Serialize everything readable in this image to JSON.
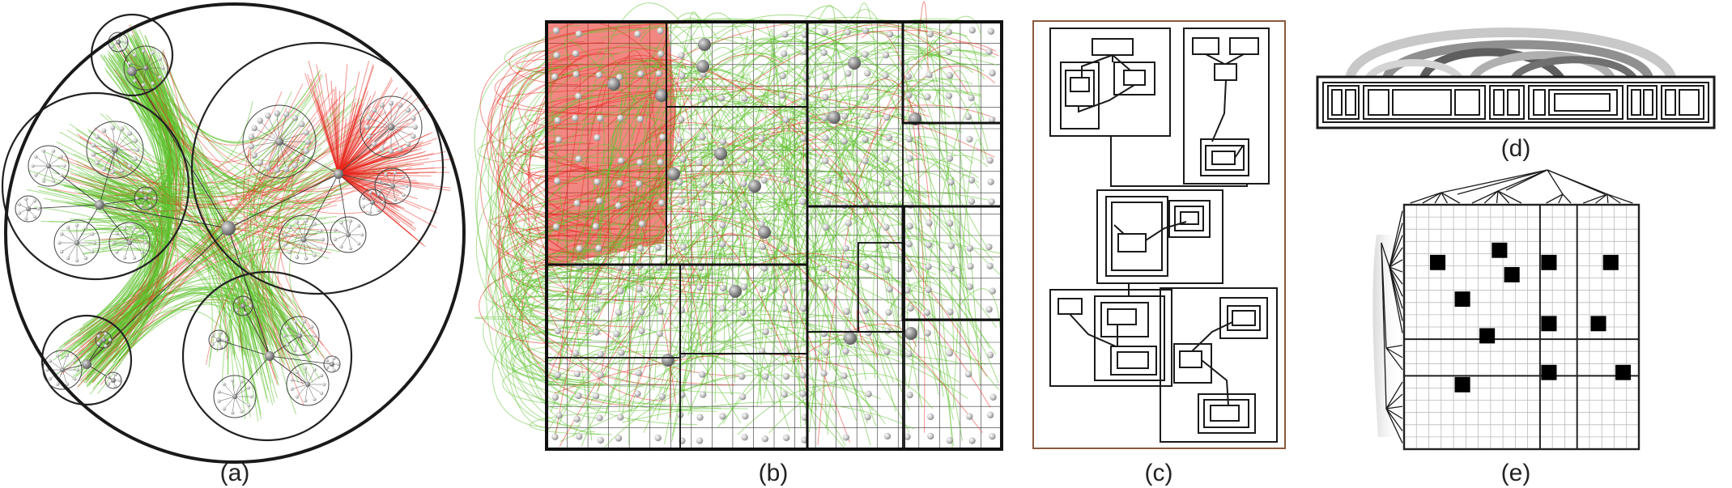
{
  "panels": [
    {
      "id": "a",
      "caption": "(a)"
    },
    {
      "id": "b",
      "caption": "(b)"
    },
    {
      "id": "c",
      "caption": "(c)"
    },
    {
      "id": "d",
      "caption": "(d)"
    },
    {
      "id": "e",
      "caption": "(e)"
    }
  ],
  "colors": {
    "edge_red": "#e8251b",
    "edge_green": "#5cc12c",
    "outline": "#1a1a1a",
    "node": "#b8b8b8",
    "grid": "#b9b9b9",
    "frame_c": "#8a5a3c",
    "arc_gray": "#9a9a9a"
  },
  "panel_e": {
    "marked_cells": [
      [
        2,
        4
      ],
      [
        7,
        3
      ],
      [
        8,
        5
      ],
      [
        11,
        4
      ],
      [
        16,
        4
      ],
      [
        4,
        7
      ],
      [
        6,
        10
      ],
      [
        11,
        9
      ],
      [
        15,
        9
      ],
      [
        11,
        13
      ],
      [
        17,
        13
      ],
      [
        4,
        14
      ]
    ]
  }
}
